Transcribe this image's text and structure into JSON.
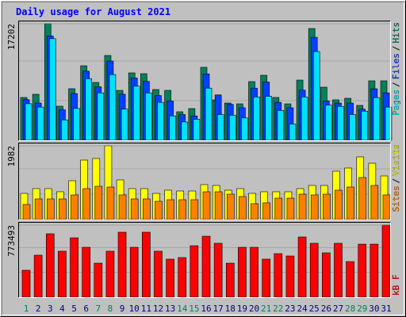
{
  "chart_data": [
    {
      "type": "bar",
      "title": "Daily usage for August 2021",
      "legend_separator": "/",
      "ylim": [
        0,
        17202
      ],
      "yticks": [
        17202
      ],
      "series": [
        {
          "name": "Hits",
          "color": "#00805c",
          "values": [
            6320,
            6790,
            17202,
            5030,
            7610,
            11000,
            8540,
            12520,
            7370,
            9950,
            9830,
            7490,
            7370,
            4210,
            4680,
            10770,
            5970,
            5500,
            5380,
            8660,
            9600,
            6320,
            5380,
            8890,
            16500,
            7840,
            5970,
            6200,
            5150,
            8780,
            8780
          ]
        },
        {
          "name": "Files",
          "color": "#0040ff",
          "values": [
            6000,
            5500,
            15400,
            4500,
            6900,
            10200,
            7900,
            11700,
            6800,
            9200,
            8700,
            6600,
            5800,
            3800,
            3600,
            9800,
            6700,
            5300,
            4800,
            7700,
            8600,
            5600,
            4800,
            7400,
            15200,
            5800,
            5500,
            5500,
            4600,
            7600,
            7000
          ]
        },
        {
          "name": "Pages",
          "color": "#00e0ff",
          "values": [
            5400,
            4900,
            15000,
            3000,
            4700,
            9100,
            7000,
            9700,
            4600,
            8000,
            7000,
            5600,
            3600,
            2700,
            3100,
            7700,
            3800,
            3700,
            3300,
            6400,
            6500,
            4400,
            2400,
            6400,
            13100,
            5200,
            5000,
            3800,
            4300,
            6300,
            4900
          ]
        }
      ]
    },
    {
      "type": "bar",
      "ylim": [
        0,
        1982
      ],
      "yticks": [
        1982
      ],
      "series": [
        {
          "name": "Visits",
          "color": "#ffff00",
          "values": [
            703,
            831,
            831,
            746,
            1044,
            1598,
            1641,
            1982,
            1066,
            831,
            831,
            703,
            789,
            767,
            767,
            938,
            916,
            789,
            831,
            703,
            746,
            746,
            746,
            831,
            916,
            916,
            1300,
            1385,
            1684,
            1513,
            1172
          ]
        },
        {
          "name": "Sites",
          "color": "#ff8000",
          "values": [
            405,
            554,
            554,
            554,
            661,
            831,
            895,
            874,
            661,
            554,
            554,
            490,
            533,
            533,
            533,
            746,
            746,
            682,
            618,
            426,
            448,
            575,
            575,
            682,
            661,
            682,
            789,
            874,
            1130,
            916,
            661
          ]
        }
      ]
    },
    {
      "type": "bar",
      "ylim": [
        0,
        773493
      ],
      "yticks": [
        773493
      ],
      "categories": [
        "1",
        "2",
        "3",
        "4",
        "5",
        "6",
        "7",
        "8",
        "9",
        "10",
        "11",
        "12",
        "13",
        "14",
        "15",
        "16",
        "17",
        "18",
        "19",
        "20",
        "21",
        "22",
        "23",
        "24",
        "25",
        "26",
        "27",
        "28",
        "29",
        "30",
        "31"
      ],
      "category_colors": [
        "#00805c",
        "#000080",
        "#000080",
        "#000080",
        "#000080",
        "#000080",
        "#00805c",
        "#00805c",
        "#000080",
        "#000080",
        "#000080",
        "#000080",
        "#000080",
        "#00805c",
        "#00805c",
        "#000080",
        "#000080",
        "#000080",
        "#000080",
        "#000080",
        "#00805c",
        "#00805c",
        "#000080",
        "#000080",
        "#000080",
        "#000080",
        "#000080",
        "#00805c",
        "#00805c",
        "#000080",
        "#000080"
      ],
      "series": [
        {
          "name": "kB F",
          "color": "#ff0000",
          "values": [
            289000,
            450500,
            680000,
            493000,
            637000,
            535000,
            365000,
            493000,
            697000,
            535000,
            697000,
            493000,
            408000,
            425000,
            552000,
            654000,
            578000,
            365000,
            535000,
            535000,
            408000,
            467000,
            442000,
            646000,
            578000,
            476000,
            578000,
            382000,
            569000,
            569000,
            773493
          ]
        }
      ]
    }
  ]
}
